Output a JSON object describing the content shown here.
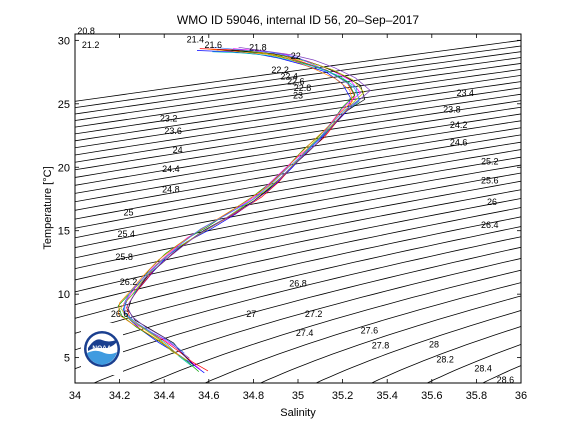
{
  "chart_data": {
    "type": "line",
    "title": "WMO ID 59046, internal ID 56, 20–Sep–2017",
    "xlabel": "Salinity",
    "ylabel": "Temperature [°C]",
    "xlim": [
      34,
      36
    ],
    "ylim": [
      3,
      30.5
    ],
    "xticks": [
      34,
      34.2,
      34.4,
      34.6,
      34.8,
      35,
      35.2,
      35.4,
      35.6,
      35.8,
      36
    ],
    "xtick_labels": [
      "34",
      "34.2",
      "34.4",
      "34.6",
      "34.8",
      "35",
      "35.2",
      "35.4",
      "35.6",
      "35.8",
      "36"
    ],
    "yticks": [
      5,
      10,
      15,
      20,
      25,
      30
    ],
    "ytick_labels": [
      "5",
      "10",
      "15",
      "20",
      "25",
      "30"
    ],
    "grid": false,
    "density_contours": {
      "interval": 0.2,
      "min": 20.0,
      "max": 29.2,
      "labels": [
        {
          "value": "20.8",
          "s": 34.05,
          "t": 30.7
        },
        {
          "value": "21.2",
          "s": 34.07,
          "t": 29.6
        },
        {
          "value": "21.4",
          "s": 34.54,
          "t": 30.0
        },
        {
          "value": "21.6",
          "s": 34.62,
          "t": 29.6
        },
        {
          "value": "21.8",
          "s": 34.82,
          "t": 29.4
        },
        {
          "value": "22",
          "s": 34.99,
          "t": 28.7
        },
        {
          "value": "22.2",
          "s": 34.92,
          "t": 27.6
        },
        {
          "value": "22.4",
          "s": 34.96,
          "t": 27.1
        },
        {
          "value": "22.6",
          "s": 34.99,
          "t": 26.7
        },
        {
          "value": "22.8",
          "s": 35.02,
          "t": 26.2
        },
        {
          "value": "23",
          "s": 35.0,
          "t": 25.6
        },
        {
          "value": "23.2",
          "s": 34.42,
          "t": 23.8
        },
        {
          "value": "23.4",
          "s": 35.75,
          "t": 25.8
        },
        {
          "value": "23.6",
          "s": 34.44,
          "t": 22.8
        },
        {
          "value": "23.8",
          "s": 35.69,
          "t": 24.5
        },
        {
          "value": "24",
          "s": 34.46,
          "t": 21.3
        },
        {
          "value": "24.2",
          "s": 35.72,
          "t": 23.3
        },
        {
          "value": "24.4",
          "s": 34.43,
          "t": 19.8
        },
        {
          "value": "24.6",
          "s": 35.72,
          "t": 21.9
        },
        {
          "value": "24.8",
          "s": 34.43,
          "t": 18.2
        },
        {
          "value": "25",
          "s": 34.24,
          "t": 16.4
        },
        {
          "value": "25.2",
          "s": 35.86,
          "t": 20.4
        },
        {
          "value": "25.4",
          "s": 34.23,
          "t": 14.7
        },
        {
          "value": "25.6",
          "s": 35.86,
          "t": 18.9
        },
        {
          "value": "25.8",
          "s": 34.22,
          "t": 12.9
        },
        {
          "value": "26",
          "s": 35.87,
          "t": 17.2
        },
        {
          "value": "26.2",
          "s": 34.24,
          "t": 10.9
        },
        {
          "value": "26.4",
          "s": 35.86,
          "t": 15.4
        },
        {
          "value": "26.6",
          "s": 34.2,
          "t": 8.4
        },
        {
          "value": "26.8",
          "s": 35.0,
          "t": 10.8
        },
        {
          "value": "27",
          "s": 34.79,
          "t": 8.4
        },
        {
          "value": "27.2",
          "s": 35.07,
          "t": 8.4
        },
        {
          "value": "27.4",
          "s": 35.03,
          "t": 6.9
        },
        {
          "value": "27.6",
          "s": 35.32,
          "t": 7.1
        },
        {
          "value": "27.8",
          "s": 35.37,
          "t": 5.9
        },
        {
          "value": "28",
          "s": 35.61,
          "t": 6.0
        },
        {
          "value": "28.2",
          "s": 35.66,
          "t": 4.8
        },
        {
          "value": "28.4",
          "s": 35.83,
          "t": 4.1
        },
        {
          "value": "28.6",
          "s": 35.93,
          "t": 3.2
        }
      ]
    },
    "series": [
      {
        "values": [
          [
            34.58,
            3.8
          ],
          [
            34.52,
            4.5
          ],
          [
            34.46,
            5.3
          ],
          [
            34.38,
            6.2
          ],
          [
            34.3,
            7.1
          ],
          [
            34.24,
            8.0
          ],
          [
            34.22,
            8.8
          ],
          [
            34.24,
            9.6
          ],
          [
            34.29,
            10.6
          ],
          [
            34.35,
            11.8
          ],
          [
            34.42,
            13.0
          ],
          [
            34.5,
            14.1
          ],
          [
            34.6,
            15.1
          ],
          [
            34.72,
            16.3
          ],
          [
            34.82,
            17.5
          ],
          [
            34.9,
            18.7
          ],
          [
            34.97,
            20.0
          ],
          [
            35.04,
            21.2
          ],
          [
            35.1,
            22.2
          ],
          [
            35.16,
            23.4
          ],
          [
            35.22,
            24.5
          ],
          [
            35.24,
            25.5
          ],
          [
            35.2,
            26.6
          ],
          [
            35.12,
            27.5
          ],
          [
            35.02,
            28.1
          ],
          [
            34.92,
            28.6
          ],
          [
            34.82,
            28.9
          ],
          [
            34.7,
            29.1
          ],
          [
            34.55,
            29.2
          ]
        ]
      },
      {
        "values": [
          [
            34.55,
            3.9
          ],
          [
            34.5,
            4.7
          ],
          [
            34.44,
            5.6
          ],
          [
            34.36,
            6.5
          ],
          [
            34.27,
            7.4
          ],
          [
            34.21,
            8.3
          ],
          [
            34.2,
            9.1
          ],
          [
            34.23,
            9.8
          ],
          [
            34.28,
            10.8
          ],
          [
            34.34,
            12.0
          ],
          [
            34.41,
            13.2
          ],
          [
            34.49,
            14.3
          ],
          [
            34.59,
            15.3
          ],
          [
            34.7,
            16.5
          ],
          [
            34.8,
            17.7
          ],
          [
            34.88,
            18.9
          ],
          [
            34.96,
            20.2
          ],
          [
            35.03,
            21.4
          ],
          [
            35.09,
            22.4
          ],
          [
            35.15,
            23.6
          ],
          [
            35.2,
            24.7
          ],
          [
            35.26,
            25.7
          ],
          [
            35.22,
            26.7
          ],
          [
            35.13,
            27.6
          ],
          [
            35.03,
            28.2
          ],
          [
            34.93,
            28.7
          ],
          [
            34.83,
            29.0
          ],
          [
            34.7,
            29.2
          ]
        ]
      },
      {
        "values": [
          [
            34.52,
            4.3
          ],
          [
            34.47,
            5.1
          ],
          [
            34.42,
            6.0
          ],
          [
            34.34,
            6.9
          ],
          [
            34.26,
            7.8
          ],
          [
            34.22,
            8.6
          ],
          [
            34.23,
            9.4
          ],
          [
            34.27,
            10.3
          ],
          [
            34.32,
            11.4
          ],
          [
            34.39,
            12.6
          ],
          [
            34.47,
            13.8
          ],
          [
            34.57,
            14.9
          ],
          [
            34.68,
            16.0
          ],
          [
            34.78,
            17.2
          ],
          [
            34.87,
            18.4
          ],
          [
            34.95,
            19.7
          ],
          [
            35.02,
            20.9
          ],
          [
            35.08,
            22.0
          ],
          [
            35.14,
            23.1
          ],
          [
            35.2,
            24.2
          ],
          [
            35.28,
            25.2
          ],
          [
            35.26,
            26.3
          ],
          [
            35.18,
            27.2
          ],
          [
            35.08,
            27.9
          ],
          [
            34.98,
            28.4
          ],
          [
            34.87,
            28.8
          ],
          [
            34.75,
            29.0
          ],
          [
            34.62,
            29.1
          ]
        ]
      },
      {
        "values": [
          [
            34.5,
            4.8
          ],
          [
            34.44,
            5.5
          ],
          [
            34.38,
            6.4
          ],
          [
            34.3,
            7.3
          ],
          [
            34.24,
            8.1
          ],
          [
            34.21,
            8.9
          ],
          [
            34.25,
            9.9
          ],
          [
            34.3,
            11.1
          ],
          [
            34.37,
            12.3
          ],
          [
            34.45,
            13.5
          ],
          [
            34.54,
            14.6
          ],
          [
            34.65,
            15.7
          ],
          [
            34.76,
            16.9
          ],
          [
            34.85,
            18.1
          ],
          [
            34.93,
            19.4
          ],
          [
            35.0,
            20.6
          ],
          [
            35.06,
            21.7
          ],
          [
            35.12,
            22.8
          ],
          [
            35.18,
            23.9
          ],
          [
            35.24,
            24.9
          ],
          [
            35.3,
            25.9
          ],
          [
            35.24,
            26.9
          ],
          [
            35.15,
            27.7
          ],
          [
            35.05,
            28.3
          ],
          [
            34.95,
            28.7
          ],
          [
            34.84,
            29.0
          ],
          [
            34.72,
            29.3
          ]
        ]
      },
      {
        "values": [
          [
            34.47,
            5.2
          ],
          [
            34.41,
            6.0
          ],
          [
            34.33,
            6.8
          ],
          [
            34.26,
            7.6
          ],
          [
            34.2,
            8.4
          ],
          [
            34.2,
            9.3
          ],
          [
            34.24,
            10.2
          ],
          [
            34.31,
            11.5
          ],
          [
            34.38,
            12.7
          ],
          [
            34.46,
            13.9
          ],
          [
            34.55,
            15.0
          ],
          [
            34.66,
            16.1
          ],
          [
            34.77,
            17.3
          ],
          [
            34.86,
            18.5
          ],
          [
            34.94,
            19.8
          ],
          [
            35.01,
            21.0
          ],
          [
            35.07,
            22.1
          ],
          [
            35.13,
            23.2
          ],
          [
            35.19,
            24.3
          ],
          [
            35.25,
            25.2
          ],
          [
            35.23,
            26.1
          ],
          [
            35.16,
            27.0
          ],
          [
            35.07,
            27.8
          ],
          [
            34.97,
            28.5
          ],
          [
            34.86,
            28.9
          ],
          [
            34.73,
            29.1
          ],
          [
            34.6,
            29.3
          ]
        ]
      }
    ]
  }
}
